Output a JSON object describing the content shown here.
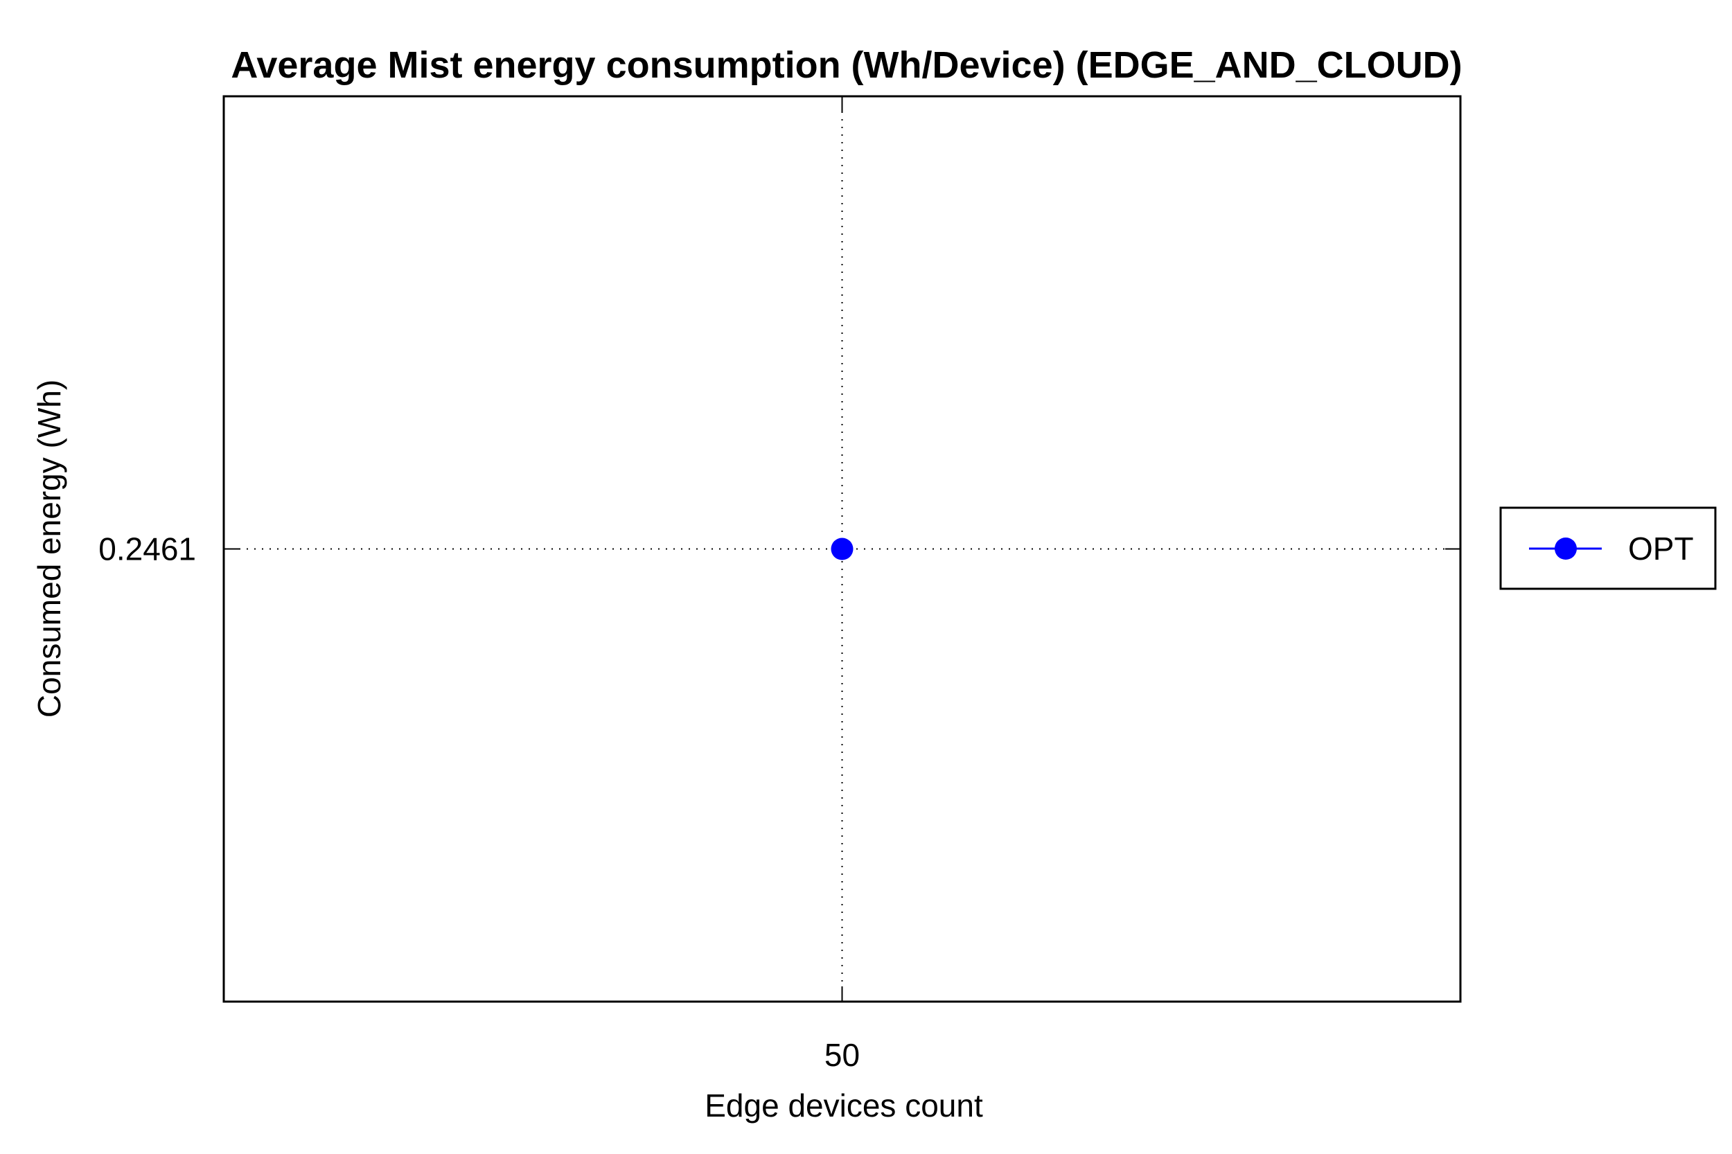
{
  "chart_data": {
    "type": "line",
    "title": "Average Mist energy consumption (Wh/Device) (EDGE_AND_CLOUD)",
    "xlabel": "Edge devices count",
    "ylabel": "Consumed energy (Wh)",
    "x": [
      50
    ],
    "x_tick_labels": [
      "50"
    ],
    "y_tick_values": [
      0.2461
    ],
    "y_tick_labels": [
      "0.2461"
    ],
    "series": [
      {
        "name": "OPT",
        "x": [
          50
        ],
        "values": [
          0.2461
        ],
        "color": "#0000ff",
        "marker": "circle"
      }
    ],
    "xlim": [
      49,
      51
    ],
    "ylim": [
      0.2451,
      0.2471
    ],
    "grid": true,
    "legend_position": "right"
  }
}
